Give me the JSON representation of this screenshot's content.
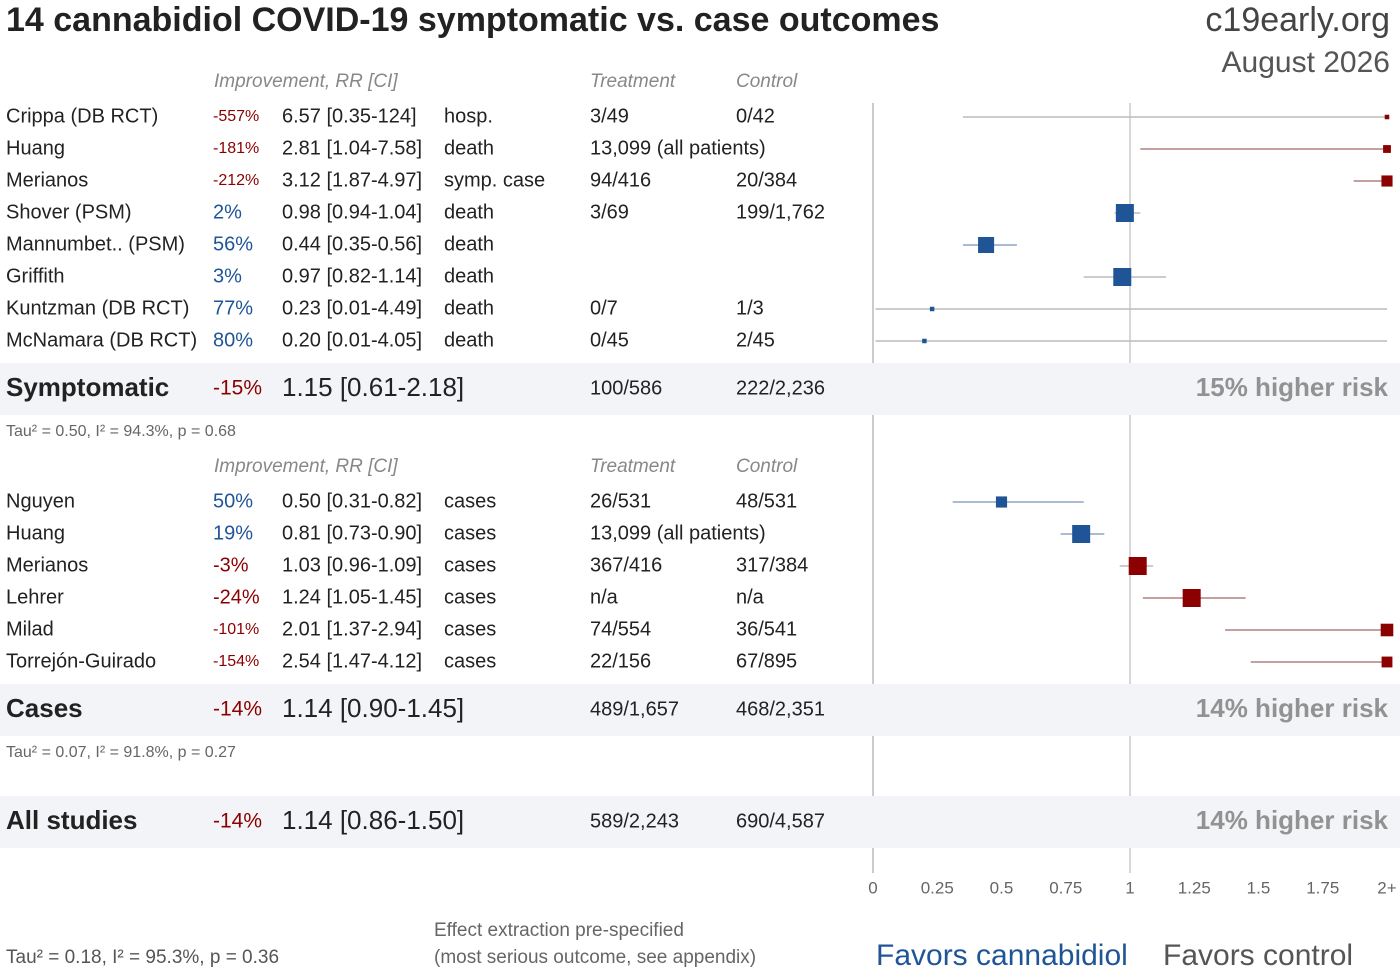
{
  "chart_data": {
    "type": "forest",
    "title": "14 cannabidiol COVID-19 symptomatic vs. case outcomes",
    "brand": "c19early.org",
    "date": "August 2026",
    "headers": {
      "improvement": "Improvement, RR [CI]",
      "treatment": "Treatment",
      "control": "Control"
    },
    "favor_color": "#1f5597",
    "harm_color": "#8b0000",
    "xlim": [
      0,
      2
    ],
    "xticks": [
      0,
      0.25,
      0.5,
      0.75,
      1,
      1.25,
      1.5,
      1.75,
      {
        "value": 2,
        "label": "2+"
      }
    ],
    "groups": [
      {
        "name": "Symptomatic",
        "studies": [
          {
            "name": "Crippa (DB RCT)",
            "improvement": "-557%",
            "rr": 6.57,
            "lower": 0.35,
            "upper": 124,
            "rr_label": "6.57 [0.35-124]",
            "outcome": "hosp.",
            "treatment": "3/49",
            "control": "0/42"
          },
          {
            "name": "Huang",
            "improvement": "-181%",
            "rr": 2.81,
            "lower": 1.04,
            "upper": 7.58,
            "rr_label": "2.81 [1.04-7.58]",
            "outcome": "death",
            "treatment": "13,099 (all patients)"
          },
          {
            "name": "Merianos",
            "improvement": "-212%",
            "rr": 3.12,
            "lower": 1.87,
            "upper": 4.97,
            "rr_label": "3.12 [1.87-4.97]",
            "outcome": "symp. case",
            "treatment": "94/416",
            "control": "20/384"
          },
          {
            "name": "Shover (PSM)",
            "improvement": "2%",
            "rr": 0.98,
            "lower": 0.94,
            "upper": 1.04,
            "rr_label": "0.98 [0.94-1.04]",
            "outcome": "death",
            "treatment": "3/69",
            "control": "199/1,762"
          },
          {
            "name": "Mannumbet.. (PSM)",
            "improvement": "56%",
            "rr": 0.44,
            "lower": 0.35,
            "upper": 0.56,
            "rr_label": "0.44 [0.35-0.56]",
            "outcome": "death"
          },
          {
            "name": "Griffith",
            "improvement": "3%",
            "rr": 0.97,
            "lower": 0.82,
            "upper": 1.14,
            "rr_label": "0.97 [0.82-1.14]",
            "outcome": "death"
          },
          {
            "name": "Kuntzman (DB RCT)",
            "improvement": "77%",
            "rr": 0.23,
            "lower": 0.01,
            "upper": 4.49,
            "rr_label": "0.23 [0.01-4.49]",
            "outcome": "death",
            "treatment": "0/7",
            "control": "1/3"
          },
          {
            "name": "McNamara (DB RCT)",
            "improvement": "80%",
            "rr": 0.2,
            "lower": 0.01,
            "upper": 4.05,
            "rr_label": "0.20 [0.01-4.05]",
            "outcome": "death",
            "treatment": "0/45",
            "control": "2/45"
          }
        ],
        "summary": {
          "improvement": "-15%",
          "rr": 1.15,
          "lower": 0.61,
          "upper": 2.18,
          "rr_label": "1.15 [0.61-2.18]",
          "treatment": "100/586",
          "control": "222/2,236",
          "risk_label": "15% higher risk"
        },
        "stats": "Tau² = 0.50, I² = 94.3%, p = 0.68"
      },
      {
        "name": "Cases",
        "studies": [
          {
            "name": "Nguyen",
            "improvement": "50%",
            "rr": 0.5,
            "lower": 0.31,
            "upper": 0.82,
            "rr_label": "0.50 [0.31-0.82]",
            "outcome": "cases",
            "treatment": "26/531",
            "control": "48/531"
          },
          {
            "name": "Huang",
            "improvement": "19%",
            "rr": 0.81,
            "lower": 0.73,
            "upper": 0.9,
            "rr_label": "0.81 [0.73-0.90]",
            "outcome": "cases",
            "treatment": "13,099 (all patients)"
          },
          {
            "name": "Merianos",
            "improvement": "-3%",
            "rr": 1.03,
            "lower": 0.96,
            "upper": 1.09,
            "rr_label": "1.03 [0.96-1.09]",
            "outcome": "cases",
            "treatment": "367/416",
            "control": "317/384"
          },
          {
            "name": "Lehrer",
            "improvement": "-24%",
            "rr": 1.24,
            "lower": 1.05,
            "upper": 1.45,
            "rr_label": "1.24 [1.05-1.45]",
            "outcome": "cases",
            "treatment": "n/a",
            "control": "n/a"
          },
          {
            "name": "Milad",
            "improvement": "-101%",
            "rr": 2.01,
            "lower": 1.37,
            "upper": 2.94,
            "rr_label": "2.01 [1.37-2.94]",
            "outcome": "cases",
            "treatment": "74/554",
            "control": "36/541"
          },
          {
            "name": "Torrejón-Guirado",
            "improvement": "-154%",
            "rr": 2.54,
            "lower": 1.47,
            "upper": 4.12,
            "rr_label": "2.54 [1.47-4.12]",
            "outcome": "cases",
            "treatment": "22/156",
            "control": "67/895"
          }
        ],
        "summary": {
          "improvement": "-14%",
          "rr": 1.14,
          "lower": 0.9,
          "upper": 1.45,
          "rr_label": "1.14 [0.90-1.45]",
          "treatment": "489/1,657",
          "control": "468/2,351",
          "risk_label": "14% higher risk"
        },
        "stats": "Tau² = 0.07, I² = 91.8%, p = 0.27"
      }
    ],
    "overall": {
      "name": "All studies",
      "improvement": "-14%",
      "rr": 1.14,
      "lower": 0.86,
      "upper": 1.5,
      "rr_label": "1.14 [0.86-1.50]",
      "treatment": "589/2,243",
      "control": "690/4,587",
      "risk_label": "14% higher risk",
      "stats": "Tau² = 0.18, I² = 95.3%, p = 0.36"
    },
    "note": [
      "Effect extraction pre-specified",
      "(most serious outcome, see appendix)"
    ],
    "favors": [
      "Favors cannabidiol",
      "Favors control"
    ]
  }
}
